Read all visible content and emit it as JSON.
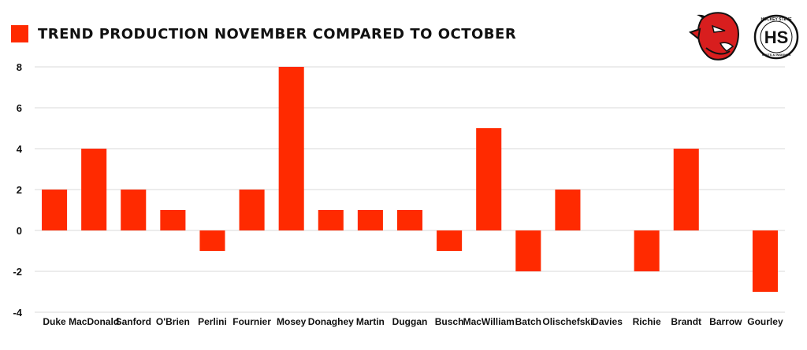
{
  "chart_data": {
    "type": "bar",
    "legend": {
      "name": "TREND PRODUCTION NOVEMBER COMPARED TO OCTOBER",
      "position": "top-left"
    },
    "categories": [
      "Duke",
      "MacDonald",
      "Sanford",
      "O'Brien",
      "Perlini",
      "Fournier",
      "Mosey",
      "Donaghey",
      "Martin",
      "Duggan",
      "Busch",
      "MacWilliam",
      "Batch",
      "Olischefski",
      "Davies",
      "Richie",
      "Brandt",
      "Barrow",
      "Gourley"
    ],
    "series": [
      {
        "name": "TREND PRODUCTION NOVEMBER COMPARED TO OCTOBER",
        "values": [
          2,
          4,
          2,
          1,
          -1,
          2,
          8,
          1,
          1,
          1,
          -1,
          5,
          -2,
          2,
          0,
          -2,
          4,
          0,
          -3
        ]
      }
    ],
    "ylim": [
      -4,
      8
    ],
    "yticks": [
      8,
      6,
      4,
      2,
      0,
      -2,
      -4
    ],
    "grid": true,
    "bar_color": "#ff2a00"
  },
  "logos": {
    "devil": {
      "icon": "devil-head-logo"
    },
    "hockey_steve": {
      "icon": "hockey-steve-logo",
      "monogram": "HS",
      "top_text": "HOCKEY STEVE",
      "bottom_text": "STATS & INSIGHTS"
    }
  }
}
